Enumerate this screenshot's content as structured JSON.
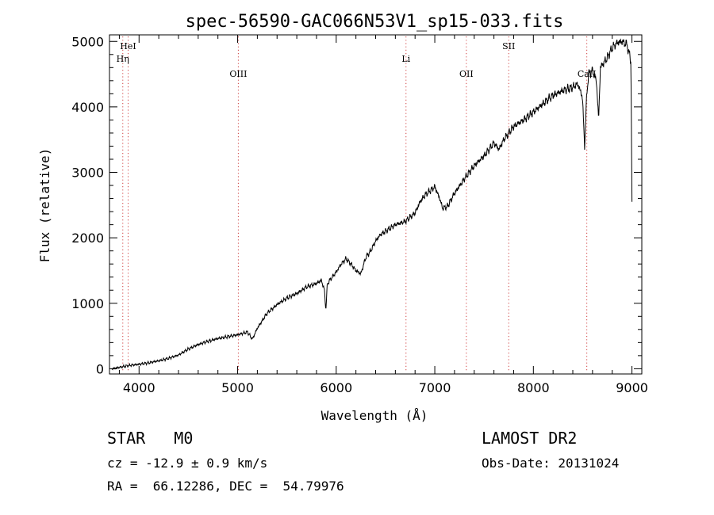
{
  "chart_data": {
    "type": "line",
    "title": "spec-56590-GAC066N53V1_sp15-033.fits",
    "xlabel": "Wavelength (Å)",
    "ylabel": "Flux (relative)",
    "xlim": [
      3700,
      9100
    ],
    "ylim": [
      -80,
      5100
    ],
    "xticks": [
      4000,
      5000,
      6000,
      7000,
      8000,
      9000
    ],
    "yticks": [
      0,
      1000,
      2000,
      3000,
      4000,
      5000
    ],
    "grid": false,
    "line_color": "#000000",
    "marker_color": "#d04040",
    "series": [
      {
        "x": [
          3720,
          3800,
          3900,
          4000,
          4100,
          4200,
          4300,
          4400,
          4500,
          4600,
          4700,
          4800,
          4900,
          5000,
          5100,
          5150,
          5200,
          5300,
          5400,
          5500,
          5600,
          5700,
          5800,
          5850,
          5880,
          5895,
          5910,
          5950,
          6000,
          6050,
          6100,
          6150,
          6200,
          6250,
          6300,
          6350,
          6400,
          6450,
          6500,
          6600,
          6700,
          6800,
          6850,
          6900,
          7000,
          7050,
          7080,
          7130,
          7200,
          7300,
          7400,
          7500,
          7600,
          7650,
          7700,
          7800,
          7900,
          8000,
          8100,
          8200,
          8300,
          8400,
          8450,
          8498,
          8520,
          8542,
          8560,
          8600,
          8640,
          8662,
          8680,
          8750,
          8800,
          8850,
          8900,
          8950,
          8990,
          9000
        ],
        "y": [
          0,
          20,
          50,
          70,
          90,
          120,
          160,
          210,
          300,
          370,
          420,
          460,
          490,
          520,
          560,
          450,
          620,
          850,
          980,
          1080,
          1150,
          1250,
          1300,
          1350,
          1200,
          900,
          1300,
          1380,
          1480,
          1600,
          1680,
          1600,
          1500,
          1450,
          1700,
          1800,
          1950,
          2050,
          2100,
          2200,
          2250,
          2380,
          2550,
          2650,
          2780,
          2600,
          2450,
          2480,
          2680,
          2900,
          3100,
          3250,
          3450,
          3350,
          3500,
          3700,
          3800,
          3920,
          4050,
          4180,
          4250,
          4300,
          4350,
          4150,
          3400,
          4200,
          4500,
          4550,
          4400,
          3800,
          4600,
          4750,
          4900,
          4980,
          5000,
          4950,
          4700,
          2500
        ]
      }
    ],
    "line_markers": [
      {
        "label": "HeI",
        "x": 3889,
        "row": 0
      },
      {
        "label": "Hη",
        "x": 3835,
        "row": 1
      },
      {
        "label": "OIII",
        "x": 5007,
        "row": 2
      },
      {
        "label": "Li",
        "x": 6708,
        "row": 1
      },
      {
        "label": "OII",
        "x": 7320,
        "row": 2
      },
      {
        "label": "SII",
        "x": 7750,
        "row": 0
      },
      {
        "label": "CaII",
        "x": 8542,
        "row": 2
      }
    ]
  },
  "info": {
    "class_line": "STAR   M0",
    "survey": "LAMOST DR2",
    "cz": "cz = -12.9 ± 0.9 km/s",
    "obs_date": "Obs-Date: 20131024",
    "coords": "RA =  66.12286, DEC =  54.79976"
  }
}
